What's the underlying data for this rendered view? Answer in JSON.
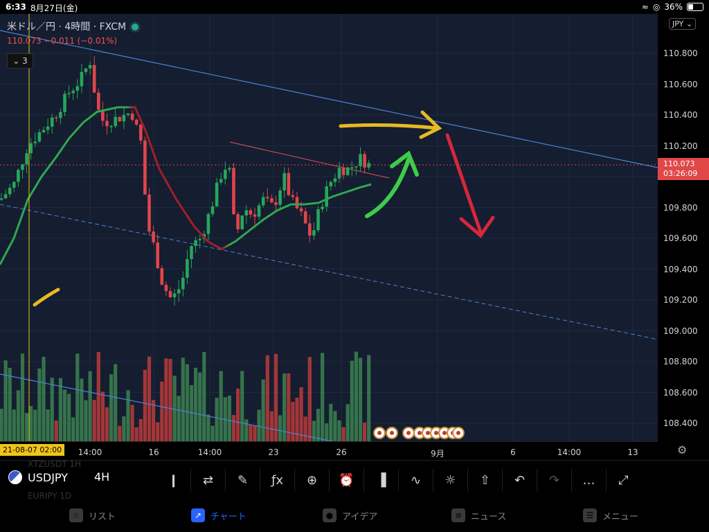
{
  "status": {
    "time": "6:33",
    "date": "8月27日(金)",
    "battery": "36%"
  },
  "chart": {
    "legend_title": "米ドル／円 · 4時間 · FXCM",
    "legend_values": "110.073  −0.011  (−0.01%)",
    "indicator_count": "3",
    "currency_button": "JPY",
    "price_badge_price": "110.073",
    "price_badge_time": "03:26:09",
    "crosshair_date": "21-08-07  02:00"
  },
  "y_ticks": [
    "110.800",
    "110.600",
    "110.400",
    "110.200",
    "110.000",
    "109.800",
    "109.600",
    "109.400",
    "109.200",
    "109.000",
    "108.800",
    "108.600",
    "108.400"
  ],
  "x_ticks": [
    {
      "label": "14:00"
    },
    {
      "label": "16"
    },
    {
      "label": "14:00"
    },
    {
      "label": "23"
    },
    {
      "label": "26"
    },
    {
      "label": "9月"
    },
    {
      "label": "6"
    },
    {
      "label": "14:00"
    },
    {
      "label": "13"
    }
  ],
  "toolbar": {
    "symbol": "USDJPY",
    "timeframe": "4H",
    "ghost_top": "XTZUSDT   1H",
    "ghost_bottom": "EURJPY    1D"
  },
  "toolbar_icons": [
    "candles-icon",
    "compare-icon",
    "draw-icon",
    "indicator-icon",
    "add-icon",
    "alert-icon",
    "bars-icon",
    "chart-type-icon",
    "idea-icon",
    "share-icon",
    "undo-icon",
    "redo-icon",
    "more-icon",
    "fullscreen-icon"
  ],
  "tabs": [
    {
      "label": "リスト",
      "icon": "star-icon",
      "active": false
    },
    {
      "label": "チャート",
      "icon": "chart-icon",
      "active": true
    },
    {
      "label": "アイデア",
      "icon": "bulb-icon",
      "active": false
    },
    {
      "label": "ニュース",
      "icon": "news-icon",
      "active": false
    },
    {
      "label": "メニュー",
      "icon": "menu-icon",
      "active": false
    }
  ],
  "chart_data": {
    "type": "candlestick",
    "ylim": [
      108.3,
      110.95
    ],
    "annotations": [
      "yellow arrow right",
      "red arrow down",
      "green arrow up-right"
    ]
  }
}
